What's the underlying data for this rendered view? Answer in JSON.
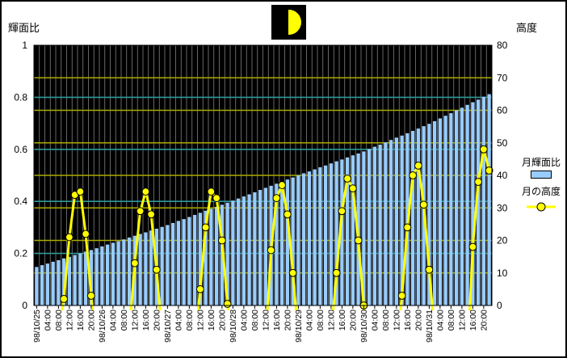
{
  "window": {
    "background": "#FFFFFF",
    "border_color": "#000000"
  },
  "title_icon": {
    "name": "first-quarter-moon",
    "box_color": "#000000",
    "moon_color": "#FFFF00"
  },
  "chart_data": {
    "type": "combo",
    "plot_background": "#000000",
    "vertical_grid_color": "#808080",
    "left_grid_color": "#2E9999",
    "right_grid_color": "#AAAA00",
    "left_axis": {
      "title": "輝面比",
      "range": [
        0,
        1
      ],
      "ticks": [
        "1",
        "0.8",
        "0.6",
        "0.4",
        "0.2",
        "0"
      ],
      "tick_values": [
        1,
        0.8,
        0.6,
        0.4,
        0.2,
        0
      ],
      "grid_values": [
        0.2,
        0.4,
        0.6,
        0.8
      ]
    },
    "right_axis": {
      "title": "高度",
      "range": [
        0,
        80
      ],
      "ticks": [
        "80",
        "70",
        "60",
        "50",
        "40",
        "30",
        "20",
        "10",
        "0"
      ],
      "tick_values": [
        80,
        70,
        60,
        50,
        40,
        30,
        20,
        10,
        0
      ],
      "grid_values": [
        10,
        20,
        30,
        40,
        50,
        60,
        70
      ]
    },
    "x_axis": {
      "slot_hours": 2,
      "total_slots": 84,
      "labels": [
        {
          "slot": 0,
          "text": "98/10/25"
        },
        {
          "slot": 2,
          "text": "04:00"
        },
        {
          "slot": 4,
          "text": "08:00"
        },
        {
          "slot": 6,
          "text": "12:00"
        },
        {
          "slot": 8,
          "text": "16:00"
        },
        {
          "slot": 10,
          "text": "20:00"
        },
        {
          "slot": 12,
          "text": "98/10/26"
        },
        {
          "slot": 14,
          "text": "04:00"
        },
        {
          "slot": 16,
          "text": "08:00"
        },
        {
          "slot": 18,
          "text": "12:00"
        },
        {
          "slot": 20,
          "text": "16:00"
        },
        {
          "slot": 22,
          "text": "20:00"
        },
        {
          "slot": 24,
          "text": "98/10/27"
        },
        {
          "slot": 26,
          "text": "04:00"
        },
        {
          "slot": 28,
          "text": "08:00"
        },
        {
          "slot": 30,
          "text": "12:00"
        },
        {
          "slot": 32,
          "text": "16:00"
        },
        {
          "slot": 34,
          "text": "20:00"
        },
        {
          "slot": 36,
          "text": "98/10/28"
        },
        {
          "slot": 38,
          "text": "04:00"
        },
        {
          "slot": 40,
          "text": "08:00"
        },
        {
          "slot": 42,
          "text": "12:00"
        },
        {
          "slot": 44,
          "text": "16:00"
        },
        {
          "slot": 46,
          "text": "20:00"
        },
        {
          "slot": 48,
          "text": "98/10/29"
        },
        {
          "slot": 50,
          "text": "04:00"
        },
        {
          "slot": 52,
          "text": "08:00"
        },
        {
          "slot": 54,
          "text": "12:00"
        },
        {
          "slot": 56,
          "text": "16:00"
        },
        {
          "slot": 58,
          "text": "20:00"
        },
        {
          "slot": 60,
          "text": "98/10/30"
        },
        {
          "slot": 62,
          "text": "04:00"
        },
        {
          "slot": 64,
          "text": "08:00"
        },
        {
          "slot": 66,
          "text": "12:00"
        },
        {
          "slot": 68,
          "text": "16:00"
        },
        {
          "slot": 70,
          "text": "20:00"
        },
        {
          "slot": 72,
          "text": "98/10/31"
        },
        {
          "slot": 74,
          "text": "04:00"
        },
        {
          "slot": 76,
          "text": "08:00"
        },
        {
          "slot": 78,
          "text": "12:00"
        },
        {
          "slot": 80,
          "text": "16:00"
        },
        {
          "slot": 82,
          "text": "20:00"
        }
      ]
    },
    "series": [
      {
        "name": "月輝面比",
        "type": "bar",
        "axis": "left",
        "color": "#99CCFF",
        "values": [
          0.148,
          0.155,
          0.161,
          0.168,
          0.174,
          0.181,
          0.187,
          0.194,
          0.2,
          0.207,
          0.213,
          0.22,
          0.227,
          0.234,
          0.241,
          0.247,
          0.254,
          0.261,
          0.268,
          0.275,
          0.281,
          0.288,
          0.295,
          0.302,
          0.309,
          0.317,
          0.325,
          0.332,
          0.34,
          0.348,
          0.356,
          0.364,
          0.372,
          0.379,
          0.387,
          0.395,
          0.403,
          0.411,
          0.419,
          0.427,
          0.435,
          0.444,
          0.452,
          0.46,
          0.468,
          0.476,
          0.484,
          0.492,
          0.5,
          0.508,
          0.515,
          0.523,
          0.531,
          0.538,
          0.546,
          0.554,
          0.561,
          0.569,
          0.577,
          0.584,
          0.592,
          0.601,
          0.61,
          0.618,
          0.627,
          0.636,
          0.645,
          0.653,
          0.662,
          0.671,
          0.68,
          0.689,
          0.698,
          0.708,
          0.719,
          0.729,
          0.739,
          0.75,
          0.76,
          0.771,
          0.781,
          0.791,
          0.802,
          0.812
        ]
      },
      {
        "name": "月の高度",
        "type": "line",
        "axis": "right",
        "color": "#FFFF00",
        "marker": {
          "shape": "circle",
          "fill": "#FFFF00",
          "stroke": "#000000"
        },
        "arcs": [
          [
            [
              4,
              -8
            ],
            [
              5,
              2
            ],
            [
              6,
              21
            ],
            [
              7,
              34
            ],
            [
              8,
              35
            ],
            [
              9,
              22
            ],
            [
              10,
              3
            ],
            [
              11,
              -14
            ]
          ],
          [
            [
              17,
              -8
            ],
            [
              18,
              13
            ],
            [
              19,
              29
            ],
            [
              20,
              35
            ],
            [
              21,
              28
            ],
            [
              22,
              11
            ],
            [
              23,
              -9
            ]
          ],
          [
            [
              29,
              -12
            ],
            [
              30,
              5
            ],
            [
              31,
              24
            ],
            [
              32,
              35
            ],
            [
              33,
              33
            ],
            [
              34,
              20
            ],
            [
              35,
              0.5
            ],
            [
              36,
              -18
            ]
          ],
          [
            [
              42,
              -11
            ],
            [
              43,
              17
            ],
            [
              44,
              33
            ],
            [
              45,
              37
            ],
            [
              46,
              28
            ],
            [
              47,
              10
            ],
            [
              48,
              -10
            ]
          ],
          [
            [
              54,
              -9
            ],
            [
              55,
              10
            ],
            [
              56,
              29
            ],
            [
              57,
              39
            ],
            [
              58,
              36
            ],
            [
              59,
              20
            ],
            [
              60,
              0
            ],
            [
              61,
              -19
            ]
          ],
          [
            [
              66,
              -13
            ],
            [
              67,
              3
            ],
            [
              68,
              24
            ],
            [
              69,
              40
            ],
            [
              70,
              43
            ],
            [
              71,
              31
            ],
            [
              72,
              11
            ],
            [
              73,
              -9
            ]
          ],
          [
            [
              79,
              -16
            ],
            [
              80,
              18
            ],
            [
              81,
              38
            ],
            [
              82,
              48
            ],
            [
              83,
              41.5
            ]
          ]
        ]
      }
    ],
    "legend_position": "right"
  }
}
